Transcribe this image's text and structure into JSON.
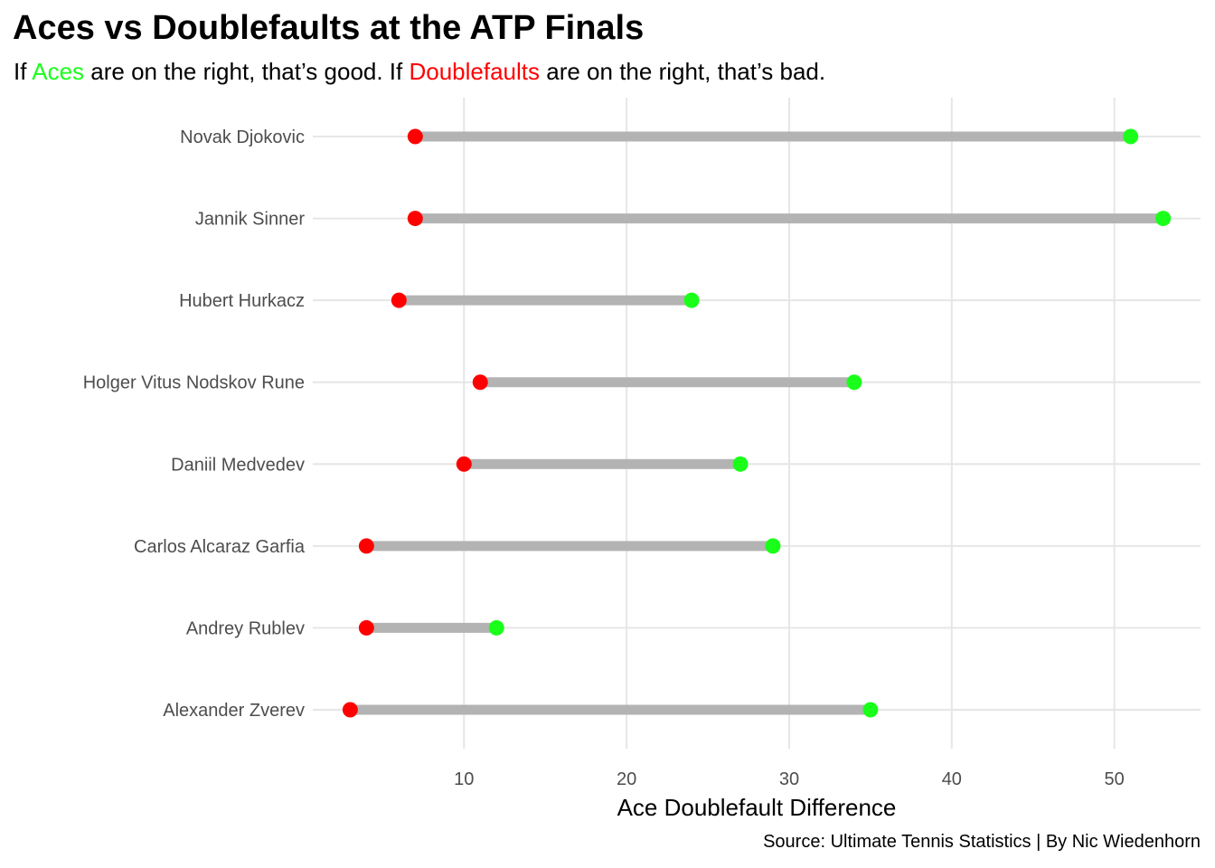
{
  "title": "Aces vs Doublefaults at the ATP Finals",
  "subtitle": {
    "part1": "If ",
    "aces_word": "Aces",
    "part2": " are on the right, that’s good. If ",
    "dfs_word": "Doublefaults",
    "part3": " are on the right, that’s bad."
  },
  "caption": "Source: Ultimate Tennis Statistics | By Nic Wiedenhorn",
  "colors": {
    "aces": "#1aff1a",
    "doublefaults": "#ff0000",
    "segment": "#b3b3b3",
    "grid": "#e6e6e6"
  },
  "chart_data": {
    "type": "dumbbell",
    "xlabel": "Ace Doublefault Difference",
    "ylabel": "",
    "xlim": [
      0.7,
      55.3
    ],
    "xticks": [
      10,
      20,
      30,
      40,
      50
    ],
    "grid": true,
    "legend": "none",
    "categories": [
      "Novak Djokovic",
      "Jannik Sinner",
      "Hubert Hurkacz",
      "Holger Vitus Nodskov Rune",
      "Daniil Medvedev",
      "Carlos Alcaraz Garfia",
      "Andrey Rublev",
      "Alexander Zverev"
    ],
    "series": [
      {
        "key": "doublefaults",
        "values": [
          7,
          7,
          6,
          11,
          10,
          4,
          4,
          3
        ]
      },
      {
        "key": "aces",
        "values": [
          51,
          53,
          24,
          34,
          27,
          29,
          12,
          35
        ]
      }
    ]
  }
}
